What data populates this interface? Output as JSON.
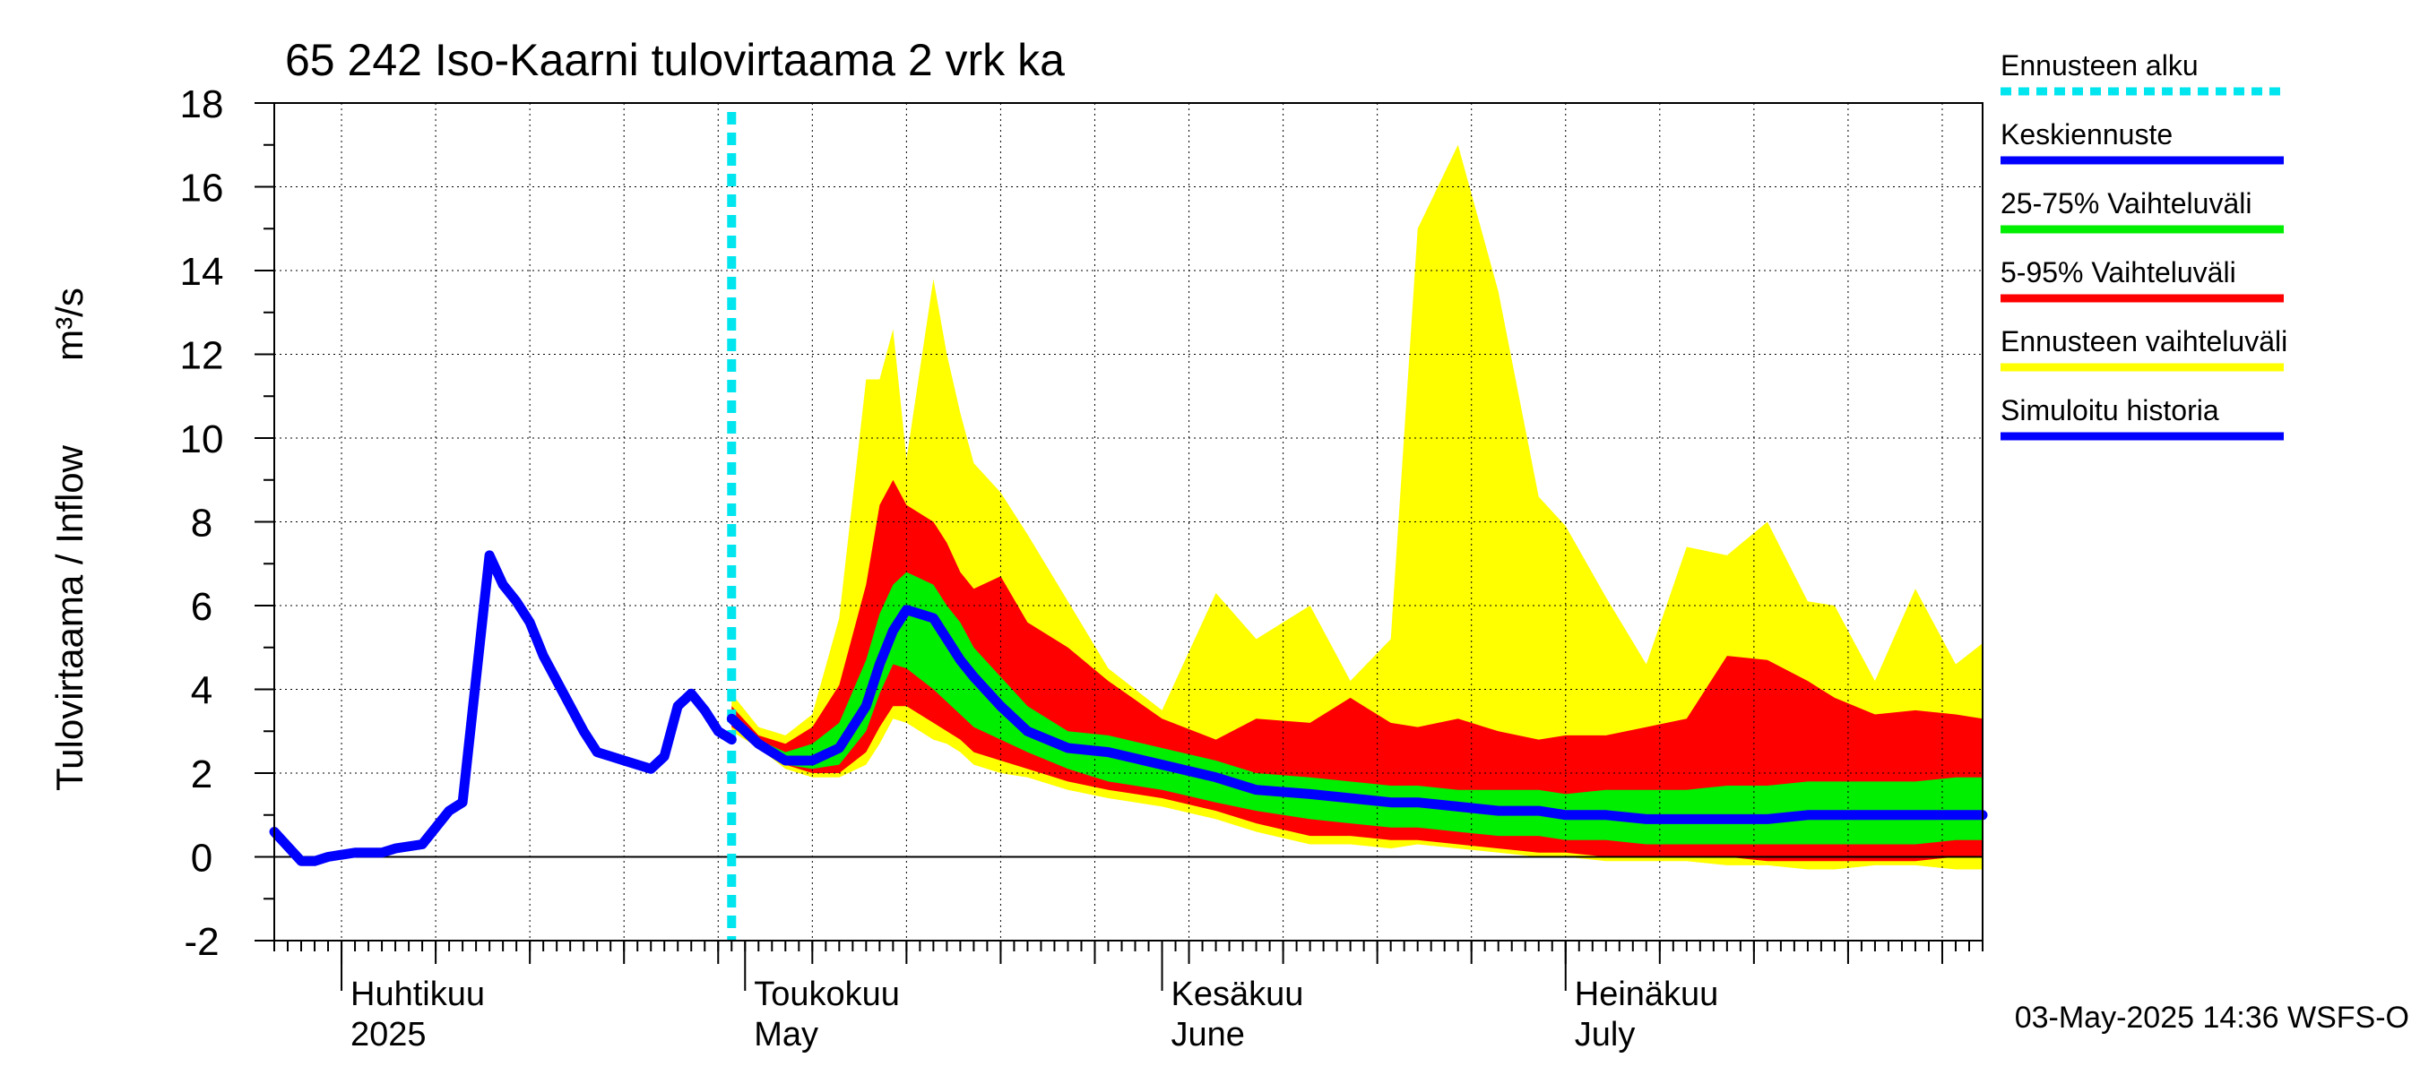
{
  "chart_data": {
    "type": "area",
    "title": "65 242 Iso-Kaarni tulovirtaama 2 vrk ka",
    "ylabel": "Tulovirtaama / Inflow",
    "yunit": "m³/s",
    "ylim": [
      -2,
      18
    ],
    "yticks": [
      -2,
      0,
      2,
      4,
      6,
      8,
      10,
      12,
      14,
      16,
      18
    ],
    "xlim": [
      "2025-03-27",
      "2025-08-01"
    ],
    "grid": true,
    "legend_placement": "right",
    "month_labels": [
      {
        "date": "2025-04-01",
        "fi": "Huhtikuu",
        "en": "2025"
      },
      {
        "date": "2025-05-01",
        "fi": "Toukokuu",
        "en": "May"
      },
      {
        "date": "2025-06-01",
        "fi": "Kesäkuu",
        "en": "June"
      },
      {
        "date": "2025-07-01",
        "fi": "Heinäkuu",
        "en": "July"
      }
    ],
    "forecast_start": "2025-04-30",
    "timestamp": "03-May-2025 14:36 WSFS-O",
    "legend": [
      {
        "key": "forecast_start",
        "label": "Ennusteen alku",
        "color": "#00e5ee",
        "style": "dotted"
      },
      {
        "key": "median",
        "label": "Keskiennuste",
        "color": "#0000ff",
        "style": "line"
      },
      {
        "key": "p25_75",
        "label": "25-75% Vaihteluväli",
        "color": "#00ee00",
        "style": "line"
      },
      {
        "key": "p5_95",
        "label": "5-95% Vaihteluväli",
        "color": "#ff0000",
        "style": "line"
      },
      {
        "key": "range",
        "label": "Ennusteen vaihteluväli",
        "color": "#ffff00",
        "style": "line"
      },
      {
        "key": "history",
        "label": "Simuloitu historia",
        "color": "#0000ff",
        "style": "line"
      }
    ],
    "history": {
      "x": [
        "2025-03-27",
        "2025-03-29",
        "2025-03-30",
        "2025-03-31",
        "2025-04-02",
        "2025-04-04",
        "2025-04-05",
        "2025-04-07",
        "2025-04-09",
        "2025-04-10",
        "2025-04-12",
        "2025-04-13",
        "2025-04-14",
        "2025-04-15",
        "2025-04-16",
        "2025-04-17",
        "2025-04-18",
        "2025-04-19",
        "2025-04-20",
        "2025-04-21",
        "2025-04-22",
        "2025-04-23",
        "2025-04-24",
        "2025-04-25",
        "2025-04-26",
        "2025-04-27",
        "2025-04-28",
        "2025-04-29",
        "2025-04-30"
      ],
      "y": [
        0.6,
        -0.1,
        -0.1,
        0.0,
        0.1,
        0.1,
        0.2,
        0.3,
        1.1,
        1.3,
        7.2,
        6.5,
        6.1,
        5.6,
        4.8,
        4.2,
        3.6,
        3.0,
        2.5,
        2.4,
        2.3,
        2.2,
        2.1,
        2.4,
        3.6,
        3.9,
        3.5,
        3.0,
        2.8
      ]
    },
    "forecast": {
      "x": [
        "2025-04-30",
        "2025-05-02",
        "2025-05-04",
        "2025-05-06",
        "2025-05-08",
        "2025-05-10",
        "2025-05-11",
        "2025-05-12",
        "2025-05-13",
        "2025-05-15",
        "2025-05-16",
        "2025-05-17",
        "2025-05-18",
        "2025-05-20",
        "2025-05-22",
        "2025-05-25",
        "2025-05-28",
        "2025-06-01",
        "2025-06-05",
        "2025-06-08",
        "2025-06-12",
        "2025-06-15",
        "2025-06-18",
        "2025-06-20",
        "2025-06-23",
        "2025-06-26",
        "2025-06-29",
        "2025-07-01",
        "2025-07-04",
        "2025-07-07",
        "2025-07-10",
        "2025-07-13",
        "2025-07-16",
        "2025-07-19",
        "2025-07-21",
        "2025-07-24",
        "2025-07-27",
        "2025-07-30",
        "2025-08-01"
      ],
      "min": [
        3.0,
        2.6,
        2.1,
        1.9,
        1.9,
        2.2,
        2.7,
        3.3,
        3.2,
        2.8,
        2.7,
        2.5,
        2.2,
        2.0,
        1.9,
        1.6,
        1.4,
        1.2,
        0.9,
        0.6,
        0.3,
        0.3,
        0.2,
        0.3,
        0.2,
        0.1,
        0.0,
        0.0,
        -0.1,
        -0.1,
        -0.1,
        -0.2,
        -0.2,
        -0.3,
        -0.3,
        -0.2,
        -0.2,
        -0.3,
        -0.3
      ],
      "p5": [
        3.1,
        2.7,
        2.2,
        2.0,
        2.0,
        2.5,
        3.1,
        3.6,
        3.6,
        3.2,
        3.0,
        2.8,
        2.5,
        2.3,
        2.1,
        1.8,
        1.6,
        1.4,
        1.1,
        0.8,
        0.5,
        0.5,
        0.4,
        0.4,
        0.3,
        0.2,
        0.1,
        0.1,
        0.0,
        0.0,
        0.0,
        0.0,
        -0.1,
        -0.1,
        -0.1,
        -0.1,
        -0.1,
        0.0,
        0.0
      ],
      "p25": [
        3.2,
        2.7,
        2.2,
        2.1,
        2.2,
        3.0,
        3.9,
        4.6,
        4.5,
        4.0,
        3.7,
        3.4,
        3.1,
        2.8,
        2.5,
        2.1,
        1.8,
        1.6,
        1.3,
        1.1,
        0.9,
        0.8,
        0.7,
        0.7,
        0.6,
        0.5,
        0.5,
        0.4,
        0.4,
        0.3,
        0.3,
        0.3,
        0.3,
        0.3,
        0.3,
        0.3,
        0.3,
        0.4,
        0.4
      ],
      "median": [
        3.3,
        2.7,
        2.3,
        2.3,
        2.6,
        3.6,
        4.6,
        5.4,
        5.9,
        5.7,
        5.2,
        4.7,
        4.3,
        3.6,
        3.0,
        2.6,
        2.5,
        2.2,
        1.9,
        1.6,
        1.5,
        1.4,
        1.3,
        1.3,
        1.2,
        1.1,
        1.1,
        1.0,
        1.0,
        0.9,
        0.9,
        0.9,
        0.9,
        1.0,
        1.0,
        1.0,
        1.0,
        1.0,
        1.0
      ],
      "p75": [
        3.4,
        2.8,
        2.5,
        2.7,
        3.2,
        4.7,
        5.8,
        6.5,
        6.8,
        6.5,
        6.0,
        5.6,
        5.0,
        4.3,
        3.6,
        3.0,
        2.9,
        2.6,
        2.3,
        2.0,
        1.9,
        1.8,
        1.7,
        1.7,
        1.6,
        1.6,
        1.6,
        1.5,
        1.6,
        1.6,
        1.6,
        1.7,
        1.7,
        1.8,
        1.8,
        1.8,
        1.8,
        1.9,
        1.9
      ],
      "p95": [
        3.6,
        2.9,
        2.7,
        3.1,
        4.1,
        6.5,
        8.4,
        9.0,
        8.4,
        8.0,
        7.5,
        6.8,
        6.4,
        6.7,
        5.6,
        5.0,
        4.2,
        3.3,
        2.8,
        3.3,
        3.2,
        3.8,
        3.2,
        3.1,
        3.3,
        3.0,
        2.8,
        2.9,
        2.9,
        3.1,
        3.3,
        4.8,
        4.7,
        4.2,
        3.8,
        3.4,
        3.5,
        3.4,
        3.3
      ],
      "max": [
        3.9,
        3.1,
        2.9,
        3.4,
        5.7,
        11.4,
        11.4,
        12.6,
        9.5,
        13.8,
        12.0,
        10.6,
        9.4,
        8.7,
        7.7,
        6.1,
        4.5,
        3.5,
        6.3,
        5.2,
        6.0,
        4.2,
        5.2,
        15.0,
        17.0,
        13.5,
        8.6,
        7.9,
        6.2,
        4.6,
        7.4,
        7.2,
        8.0,
        6.1,
        6.0,
        4.2,
        6.4,
        4.6,
        5.1
      ]
    }
  }
}
